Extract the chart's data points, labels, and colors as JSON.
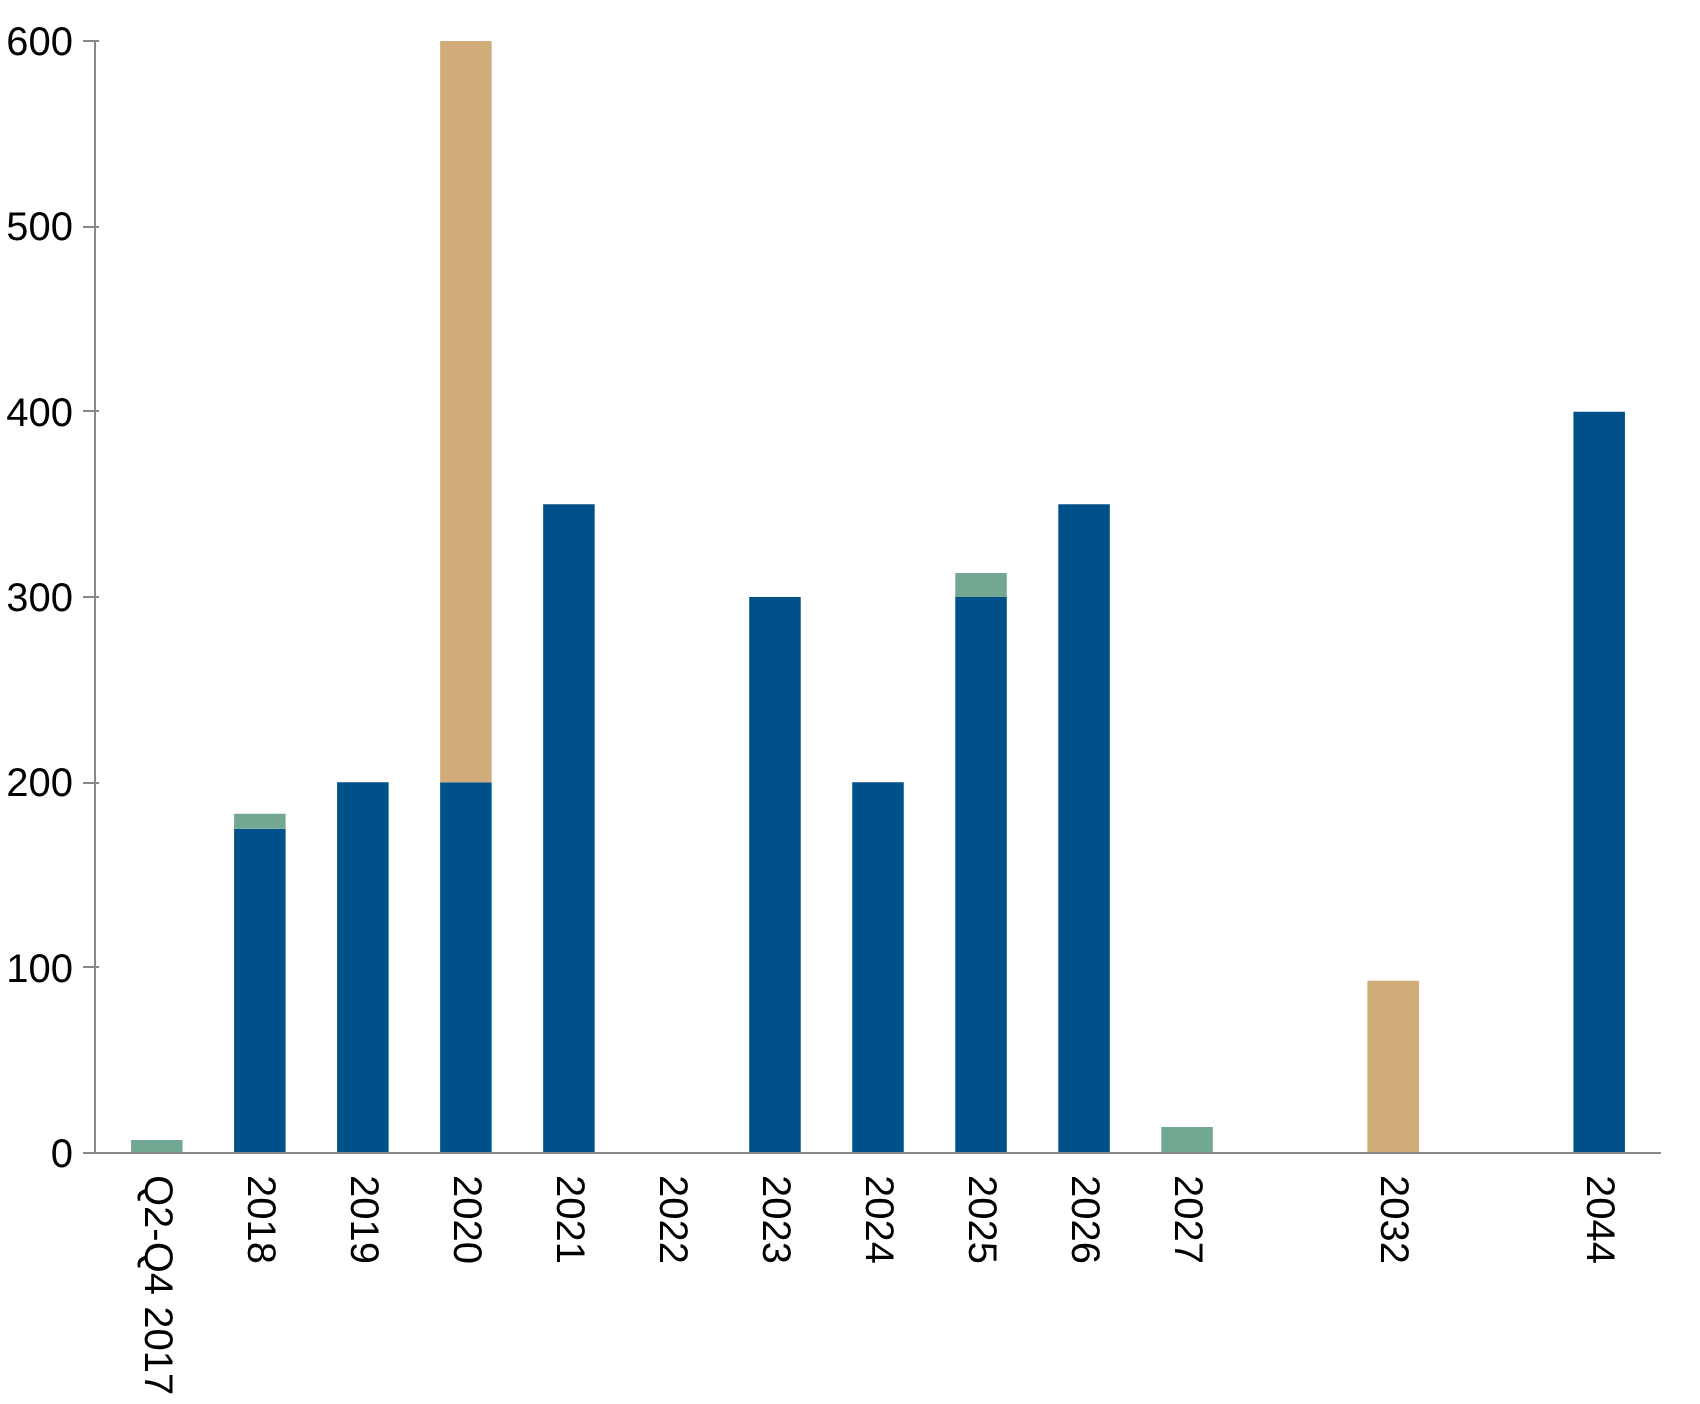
{
  "chart_data": {
    "type": "bar",
    "stacked": true,
    "categories": [
      "Q2-Q4 2017",
      "2018",
      "2019",
      "2020",
      "2021",
      "2022",
      "2023",
      "2024",
      "2025",
      "2026",
      "2027",
      null,
      "2032",
      null,
      "2044"
    ],
    "series": [
      {
        "color": "#00508a",
        "values": [
          null,
          175,
          200,
          200,
          350,
          null,
          300,
          200,
          300,
          350,
          null,
          null,
          null,
          null,
          400
        ]
      },
      {
        "color": "#cfac78",
        "values": [
          null,
          null,
          null,
          400,
          null,
          null,
          null,
          null,
          null,
          null,
          null,
          null,
          93,
          null,
          null
        ]
      },
      {
        "color": "#72a791",
        "values": [
          7,
          8,
          null,
          null,
          null,
          null,
          null,
          null,
          13,
          null,
          14,
          null,
          null,
          null,
          null
        ]
      }
    ],
    "ylim": [
      0,
      600
    ],
    "yticks": [
      0,
      100,
      200,
      300,
      400,
      500,
      600
    ],
    "grid": false
  }
}
